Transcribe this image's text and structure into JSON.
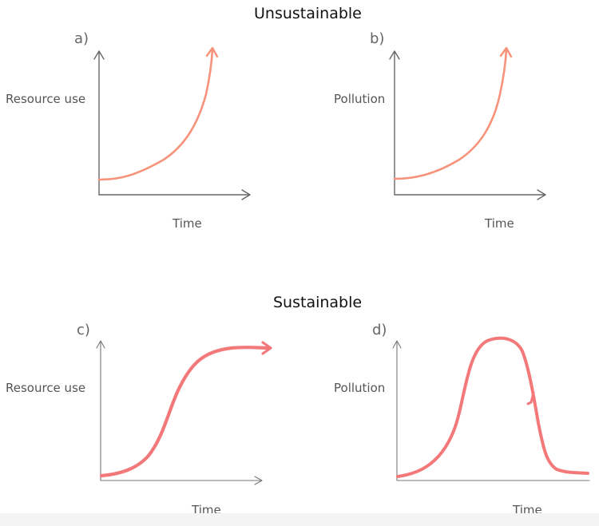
{
  "headings": {
    "top": "Unsustainable",
    "bottom": "Sustainable"
  },
  "panels": [
    {
      "letter": "a)",
      "ylabel": "Resource use",
      "xlabel": "Time",
      "curve": "exponential"
    },
    {
      "letter": "b)",
      "ylabel": "Pollution",
      "xlabel": "Time",
      "curve": "exponential"
    },
    {
      "letter": "c)",
      "ylabel": "Resource use",
      "xlabel": "Time",
      "curve": "s-curve"
    },
    {
      "letter": "d)",
      "ylabel": "Pollution",
      "xlabel": "Time",
      "curve": "rise-and-fall"
    }
  ],
  "colors": {
    "curve_light": "#f7937a",
    "curve_strong": "#f3787a",
    "axis": "#666666"
  }
}
